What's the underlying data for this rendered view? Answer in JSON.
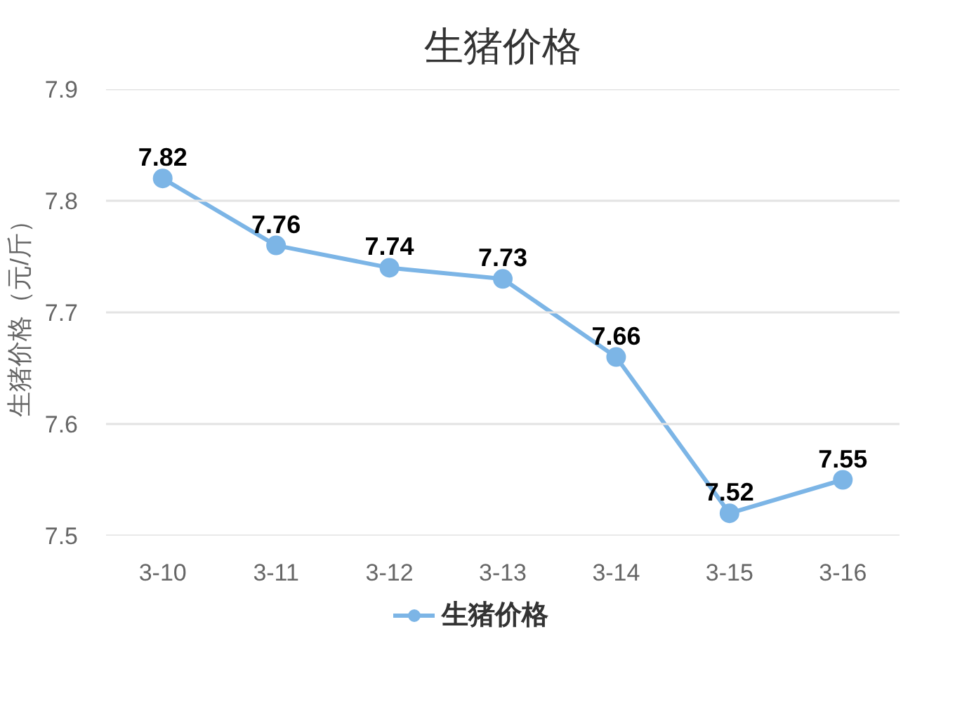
{
  "chart_data": {
    "type": "line",
    "title": "生猪价格",
    "ylabel": "生猪价格（元/斤）",
    "categories": [
      "3-10",
      "3-11",
      "3-12",
      "3-13",
      "3-14",
      "3-15",
      "3-16"
    ],
    "series": [
      {
        "name": "生猪价格",
        "color": "#7cb5e6",
        "values": [
          7.82,
          7.76,
          7.74,
          7.73,
          7.66,
          7.52,
          7.55
        ]
      }
    ],
    "ylim": [
      7.5,
      7.9
    ],
    "yticks": [
      7.5,
      7.6,
      7.7,
      7.8,
      7.9
    ],
    "grid": "y",
    "legend": "bottom",
    "marker": "circle",
    "data_labels": true
  }
}
